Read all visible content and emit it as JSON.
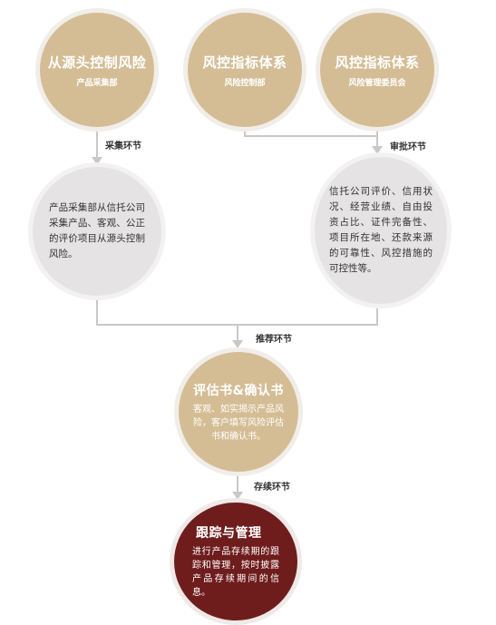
{
  "circles": {
    "source": {
      "title": "从源头控制风险",
      "subtitle": "产品采集部"
    },
    "indicator1": {
      "title": "风控指标体系",
      "subtitle": "风险控制部"
    },
    "indicator2": {
      "title": "风控指标体系",
      "subtitle": "风险管理委员会"
    },
    "collect_desc": {
      "text": "产品采集部从信托公司采集产品、客观、公正的评价项目从源头控制风险。"
    },
    "review_desc": {
      "text": "信托公司评价、信用状况、经营业绩、自由投资占比、证件完备性、项目所在地、还款来源的可靠性、风控措施的可控性等。"
    },
    "assessment": {
      "title": "评估书&确认书",
      "text": "客观、如实揭示产品风险，客户填写风险评估书和确认书。"
    },
    "tracking": {
      "title": "跟踪与管理",
      "text": "进行产品存续期的跟踪和管理，按时披露产品存续期间的信息。"
    }
  },
  "steps": {
    "collect": "采集环节",
    "review": "审批环节",
    "recommend": "推荐环节",
    "duration": "存续环节"
  },
  "colors": {
    "gold": "#d4bd95",
    "gray": "#e5e3e3",
    "red": "#6e1d1c",
    "line": "#c8c8c8"
  }
}
